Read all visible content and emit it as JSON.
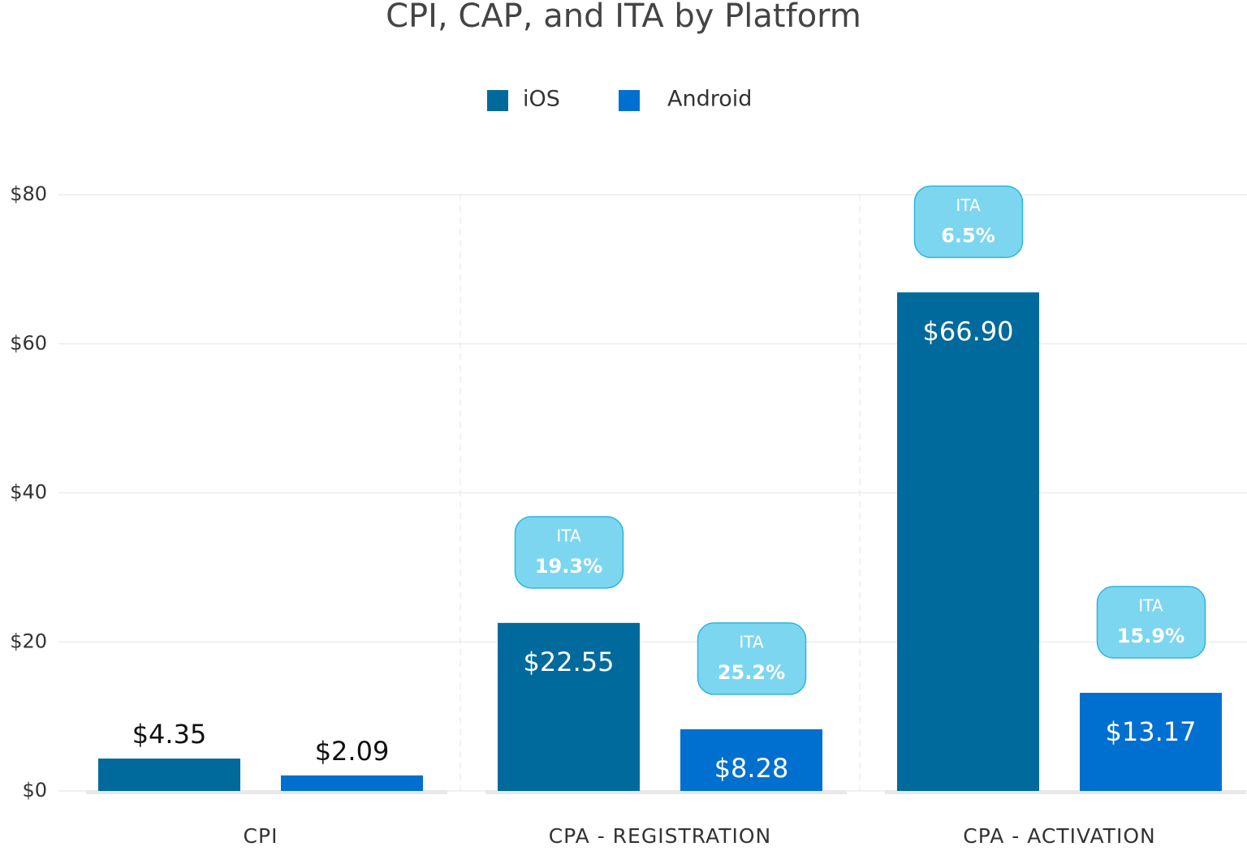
{
  "chart_data": {
    "type": "bar",
    "title": "CPI, CAP, and ITA by Platform",
    "categories": [
      "CPI",
      "CPA - REGISTRATION",
      "CPA - ACTIVATION"
    ],
    "series": [
      {
        "name": "iOS",
        "color": "#006a9c",
        "values": [
          4.35,
          22.55,
          66.9
        ],
        "value_labels": [
          "$4.35",
          "$22.55",
          "$66.90"
        ],
        "ita_values": [
          null,
          19.3,
          6.5
        ],
        "ita_labels": [
          null,
          "19.3%",
          "6.5%"
        ]
      },
      {
        "name": "Android",
        "color": "#0070d0",
        "values": [
          2.09,
          8.28,
          13.17
        ],
        "value_labels": [
          "$2.09",
          "$8.28",
          "$13.17"
        ],
        "ita_values": [
          null,
          25.2,
          15.9
        ],
        "ita_labels": [
          null,
          "25.2%",
          "15.9%"
        ]
      }
    ],
    "ita_title": "ITA",
    "ylim": [
      0,
      80
    ],
    "yticks": [
      {
        "value": 0,
        "label": "$0"
      },
      {
        "value": 20,
        "label": "$20"
      },
      {
        "value": 40,
        "label": "$40"
      },
      {
        "value": 60,
        "label": "$60"
      },
      {
        "value": 80,
        "label": "$80"
      }
    ],
    "grid": true,
    "legend": "top"
  }
}
